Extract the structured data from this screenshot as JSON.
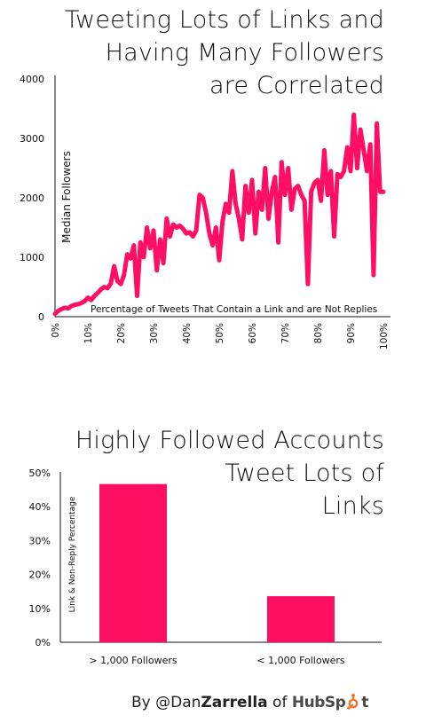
{
  "chart_data": [
    {
      "type": "line",
      "title": "Tweeting Lots of Links and Having Many Followers are Correlated",
      "title_lines": [
        "Tweeting Lots of Links and",
        "Having Many Followers",
        "are Correlated"
      ],
      "xlabel": "Percentage of Tweets That Contain a Link and are Not Replies",
      "ylabel": "Median Followers",
      "xlim": [
        0,
        100
      ],
      "ylim": [
        0,
        4000
      ],
      "yticks": [
        "0",
        "1000",
        "2000",
        "3000",
        "4000"
      ],
      "xticks": [
        "0%",
        "10%",
        "20%",
        "30%",
        "40%",
        "50%",
        "60%",
        "70%",
        "80%",
        "90%",
        "100%"
      ],
      "color": "#ff0f64",
      "grid": false,
      "x": [
        0,
        1,
        2,
        3,
        4,
        5,
        6,
        7,
        8,
        9,
        10,
        11,
        12,
        13,
        14,
        15,
        16,
        17,
        18,
        19,
        20,
        21,
        22,
        23,
        24,
        25,
        26,
        27,
        28,
        29,
        30,
        31,
        32,
        33,
        34,
        35,
        36,
        37,
        38,
        39,
        40,
        41,
        42,
        43,
        44,
        45,
        46,
        47,
        48,
        49,
        50,
        51,
        52,
        53,
        54,
        55,
        56,
        57,
        58,
        59,
        60,
        61,
        62,
        63,
        64,
        65,
        66,
        67,
        68,
        69,
        70,
        71,
        72,
        73,
        74,
        75,
        76,
        77,
        78,
        79,
        80,
        81,
        82,
        83,
        84,
        85,
        86,
        87,
        88,
        89,
        90,
        91,
        92,
        93,
        94,
        95,
        96,
        97,
        98,
        99,
        100
      ],
      "y": [
        50,
        100,
        130,
        150,
        140,
        180,
        200,
        210,
        230,
        260,
        320,
        280,
        350,
        400,
        460,
        500,
        480,
        560,
        850,
        600,
        550,
        700,
        1050,
        980,
        1200,
        350,
        1250,
        1000,
        1500,
        1150,
        1450,
        780,
        1300,
        900,
        1650,
        1350,
        1550,
        1500,
        1530,
        1480,
        1400,
        1420,
        1350,
        1450,
        2050,
        2000,
        1750,
        1400,
        1200,
        1500,
        950,
        1600,
        1900,
        1750,
        2450,
        1900,
        1650,
        1300,
        2200,
        1750,
        2300,
        1400,
        2100,
        1800,
        2500,
        1650,
        2100,
        2350,
        1250,
        2600,
        2050,
        2500,
        1800,
        2150,
        2200,
        2050,
        1950,
        550,
        2100,
        2250,
        2300,
        1950,
        2800,
        2050,
        2450,
        1350,
        2400,
        2350,
        2450,
        2850,
        2450,
        3400,
        2500,
        3150,
        2800,
        2450,
        2900,
        700,
        3250,
        2100,
        2100
      ],
      "annotations": []
    },
    {
      "type": "bar",
      "title": "Highly Followed Accounts Tweet Lots of Links",
      "title_lines": [
        "Highly Followed Accounts",
        "Tweet Lots of",
        "Links"
      ],
      "categories": [
        "> 1,000 Followers",
        "< 1,000 Followers"
      ],
      "values": [
        46.7,
        13.6
      ],
      "ylabel": "Link & Non-Reply Percentage",
      "xlabel": "",
      "ylim": [
        0,
        50
      ],
      "yticks": [
        "0%",
        "10%",
        "20%",
        "30%",
        "40%",
        "50%"
      ],
      "color": "#ff0f64",
      "grid": false
    }
  ],
  "footer": {
    "by": "By @Dan",
    "name": "Zarrella",
    "of": " of ",
    "brand_pre": "HubSp",
    "brand_post": "t",
    "brand_color": "#4a4a4a",
    "accent_color": "#f07830"
  }
}
